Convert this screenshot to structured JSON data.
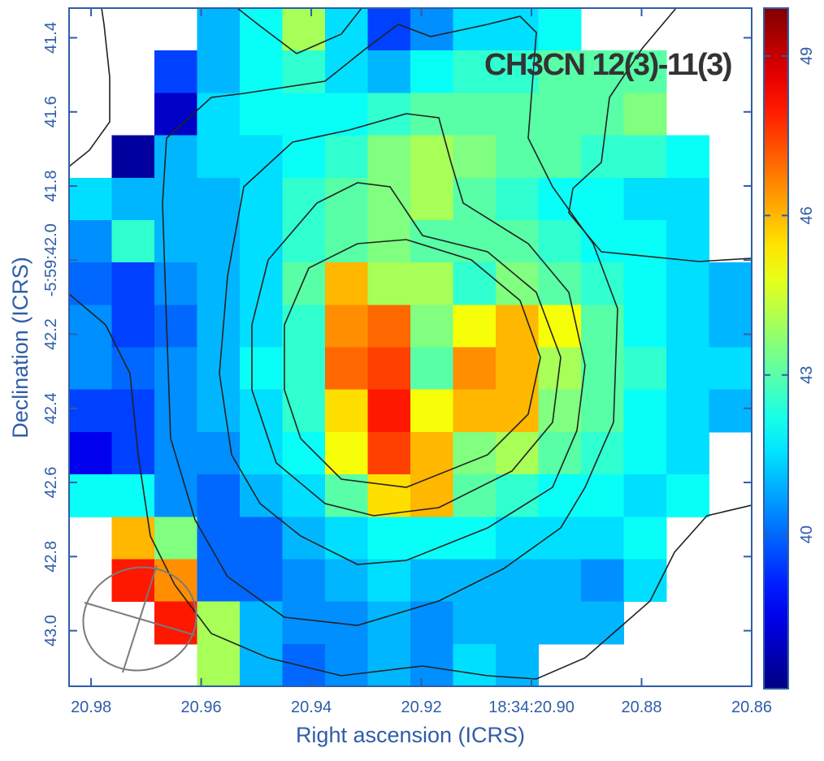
{
  "chart_data": {
    "type": "heatmap",
    "title": "CH3CN 12(3)-11(3)",
    "xlabel": "Right ascension (ICRS)",
    "ylabel": "Declination (ICRS)",
    "colormap": "jet",
    "xlim": [
      20.984,
      20.86
    ],
    "xticks": [
      20.98,
      20.96,
      20.94,
      20.92,
      {
        "value": 20.9,
        "label": "18:34:20.90"
      },
      20.88,
      20.86
    ],
    "ylim": [
      41.32,
      43.15
    ],
    "yticks": [
      41.4,
      41.6,
      41.8,
      {
        "value": 42,
        "label": "-5:59:42.0"
      },
      42.2,
      42.4,
      42.6,
      42.8,
      {
        "value": 43,
        "label": "43.0"
      }
    ],
    "clim": [
      37.1,
      49.9
    ],
    "cticks": [
      40,
      43,
      46,
      49
    ],
    "z": [
      [
        null,
        null,
        null,
        41,
        42,
        44,
        41.5,
        39.5,
        40.5,
        41.5,
        41.5,
        42,
        null,
        null,
        null,
        null
      ],
      [
        null,
        null,
        39.5,
        41,
        42,
        42.5,
        41.5,
        41,
        42,
        42.5,
        42.5,
        43,
        43,
        43,
        null,
        null
      ],
      [
        null,
        null,
        38,
        41.5,
        42,
        42,
        42,
        42.5,
        43,
        43,
        43,
        43,
        43,
        43.5,
        null,
        null
      ],
      [
        null,
        37.5,
        41,
        41.5,
        41.5,
        42,
        42.5,
        43.5,
        44,
        43.5,
        43,
        43,
        42.5,
        42.5,
        42,
        null
      ],
      [
        41.5,
        41,
        41,
        41,
        41.5,
        42.5,
        43,
        43.5,
        44,
        43,
        42.5,
        42,
        42,
        41.5,
        41.5,
        null
      ],
      [
        40.5,
        42.5,
        41,
        41,
        41.5,
        42.5,
        43,
        43.5,
        43,
        43,
        43,
        42.5,
        42,
        42,
        41.5,
        null
      ],
      [
        40,
        39.5,
        40.5,
        41,
        41.5,
        43,
        46,
        44,
        44,
        42.5,
        43.5,
        43,
        42.5,
        42,
        41.5,
        41
      ],
      [
        40.5,
        39.5,
        40,
        41,
        41.5,
        42.5,
        46.5,
        47,
        43.5,
        45,
        46,
        45,
        43,
        42,
        41.5,
        41
      ],
      [
        40.5,
        40,
        40.5,
        41,
        42,
        42.5,
        47,
        47.5,
        43,
        46.5,
        46,
        44,
        43,
        42.5,
        41.5,
        41.5
      ],
      [
        39.5,
        39.5,
        40.5,
        41,
        41.5,
        42.5,
        45.5,
        48,
        45,
        46,
        46,
        43.5,
        43,
        42,
        41.5,
        41
      ],
      [
        38.5,
        39.5,
        40.5,
        40.5,
        41.5,
        42,
        45,
        47.5,
        46,
        43.5,
        44,
        43,
        42.5,
        42,
        41.5,
        null
      ],
      [
        42,
        42,
        40.5,
        40,
        41,
        41.5,
        43,
        45.5,
        46,
        43,
        42.5,
        42,
        42,
        41.5,
        42,
        null
      ],
      [
        null,
        46,
        43.5,
        40,
        40,
        41,
        41.5,
        42,
        42,
        42,
        41.5,
        41.5,
        41.5,
        42,
        null,
        null
      ],
      [
        null,
        48,
        46.5,
        40,
        40,
        40.5,
        41,
        41.5,
        41,
        41,
        41,
        41,
        40.5,
        41.5,
        null,
        null
      ],
      [
        null,
        null,
        48,
        44,
        41,
        40.5,
        40.5,
        41,
        40.5,
        41,
        41,
        41,
        41,
        null,
        null,
        null
      ],
      [
        null,
        null,
        null,
        44,
        41,
        40,
        40.5,
        41,
        40.5,
        41.5,
        41,
        null,
        null,
        null,
        null,
        null
      ]
    ]
  }
}
